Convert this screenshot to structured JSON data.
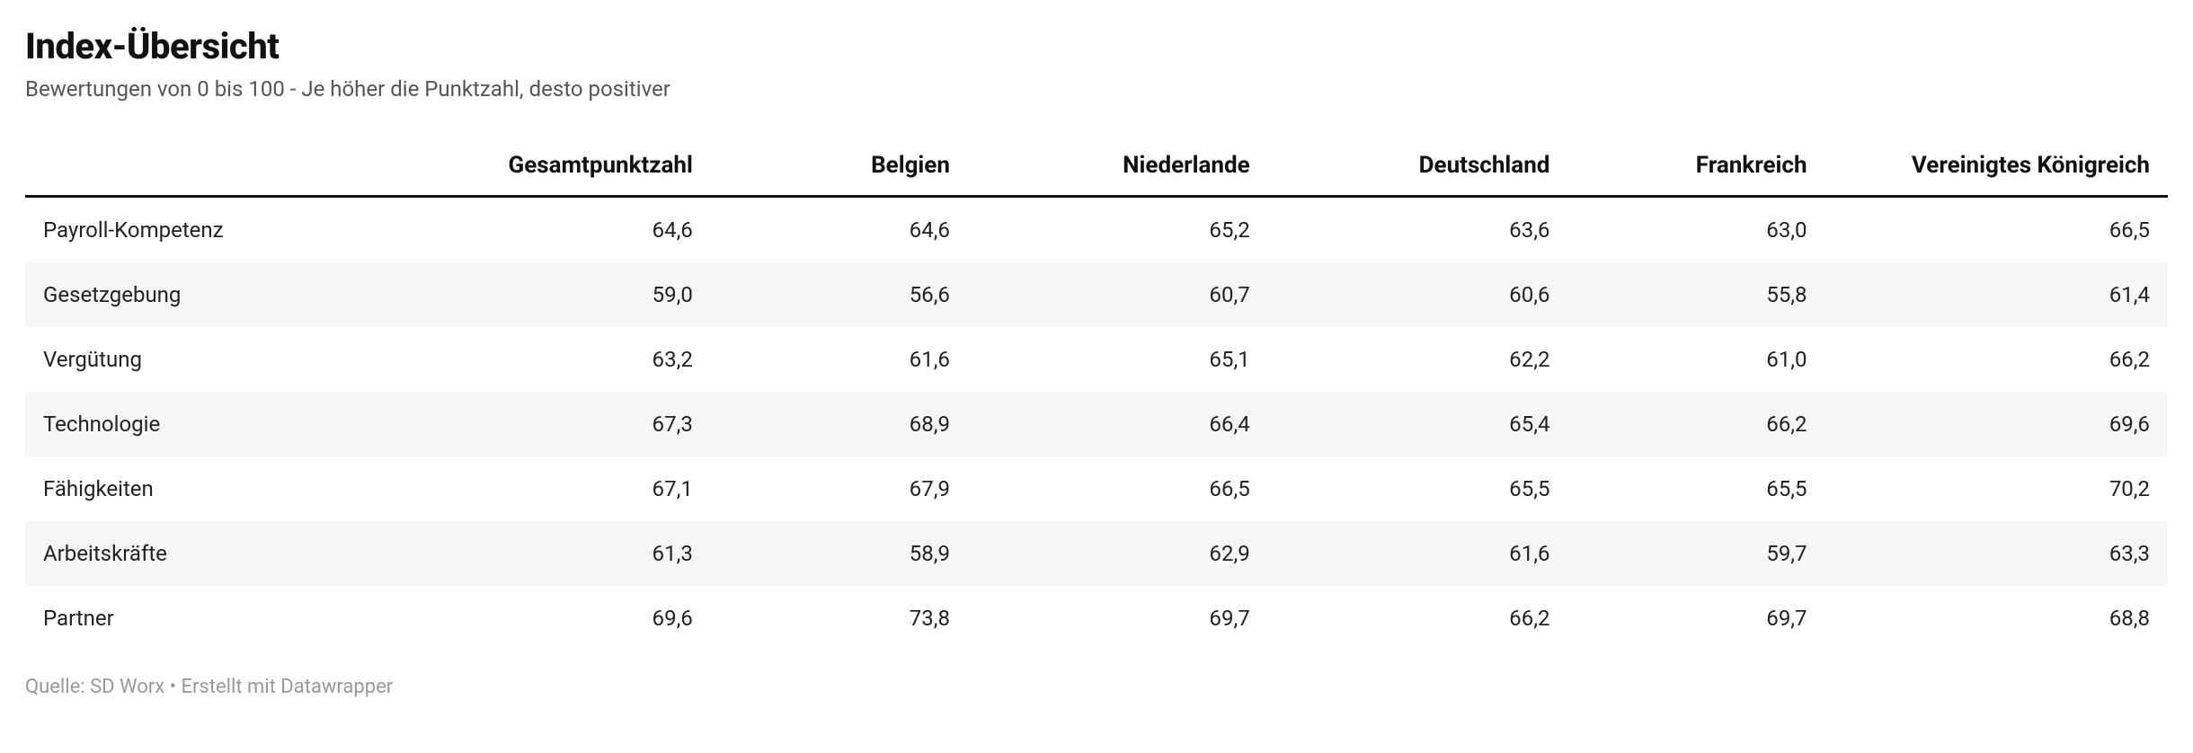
{
  "title": "Index-Übersicht",
  "subtitle": "Bewertungen von 0 bis 100 - Je höher die Punktzahl, desto positiver",
  "footer": "Quelle: SD Worx • Erstellt mit Datawrapper",
  "table": {
    "type": "table",
    "background_color": "#ffffff",
    "stripe_color": "#f6f6f6",
    "header_border_color": "#111111",
    "text_color": "#222222",
    "header_fontsize": 26,
    "cell_fontsize": 24,
    "column_widths_pct": [
      18,
      14,
      12,
      14,
      14,
      12,
      16
    ],
    "columns": [
      "",
      "Gesamtpunktzahl",
      "Belgien",
      "Niederlande",
      "Deutschland",
      "Frankreich",
      "Vereinigtes Königreich"
    ],
    "column_align": [
      "left",
      "right",
      "right",
      "right",
      "right",
      "right",
      "right"
    ],
    "rows": [
      [
        "Payroll-Kompetenz",
        "64,6",
        "64,6",
        "65,2",
        "63,6",
        "63,0",
        "66,5"
      ],
      [
        "Gesetzgebung",
        "59,0",
        "56,6",
        "60,7",
        "60,6",
        "55,8",
        "61,4"
      ],
      [
        "Vergütung",
        "63,2",
        "61,6",
        "65,1",
        "62,2",
        "61,0",
        "66,2"
      ],
      [
        "Technologie",
        "67,3",
        "68,9",
        "66,4",
        "65,4",
        "66,2",
        "69,6"
      ],
      [
        "Fähigkeiten",
        "67,1",
        "67,9",
        "66,5",
        "65,5",
        "65,5",
        "70,2"
      ],
      [
        "Arbeitskräfte",
        "61,3",
        "58,9",
        "62,9",
        "61,6",
        "59,7",
        "63,3"
      ],
      [
        "Partner",
        "69,6",
        "73,8",
        "69,7",
        "66,2",
        "69,7",
        "68,8"
      ]
    ]
  }
}
